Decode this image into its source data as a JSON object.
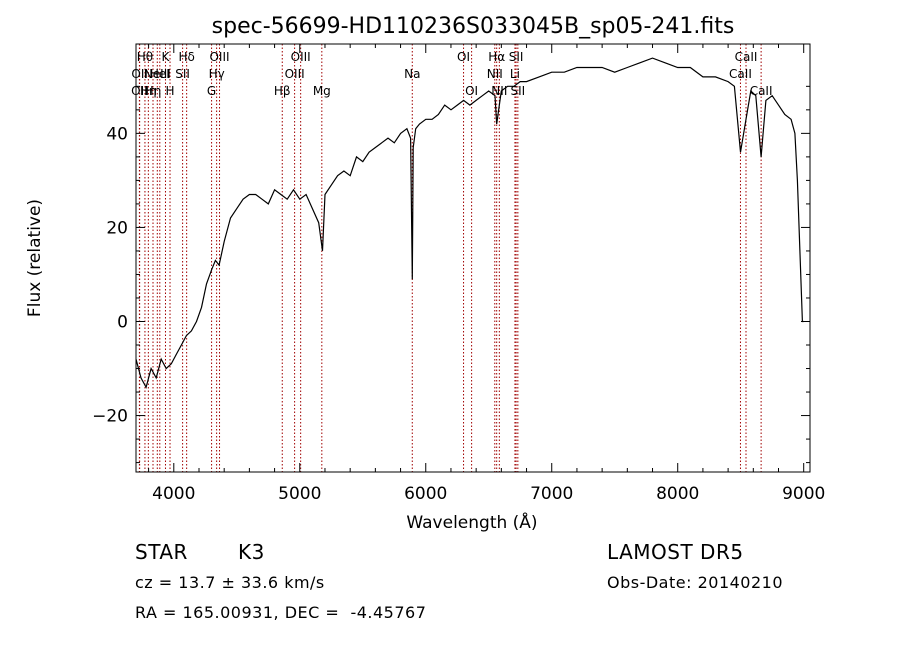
{
  "chart_data": {
    "type": "line",
    "title": "spec-56699-HD110236S033045B_sp05-241.fits",
    "xlabel": "Wavelength (Å)",
    "ylabel": "Flux (relative)",
    "xlim": [
      3700,
      9050
    ],
    "ylim": [
      -32,
      59
    ],
    "x_ticks": [
      4000,
      5000,
      6000,
      7000,
      8000,
      9000
    ],
    "y_ticks": [
      -20,
      0,
      20,
      40
    ],
    "grid": false,
    "line_color": "#000000",
    "marker_color": "#a00000",
    "series": [
      {
        "x": [
          3700,
          3740,
          3780,
          3820,
          3860,
          3900,
          3940,
          3980,
          4020,
          4060,
          4100,
          4140,
          4180,
          4220,
          4260,
          4300,
          4330,
          4360,
          4400,
          4450,
          4500,
          4550,
          4600,
          4650,
          4700,
          4750,
          4800,
          4850,
          4900,
          4950,
          5000,
          5050,
          5100,
          5150,
          5180,
          5200,
          5250,
          5300,
          5350,
          5400,
          5450,
          5500,
          5550,
          5600,
          5650,
          5700,
          5750,
          5800,
          5850,
          5880,
          5893,
          5900,
          5920,
          5950,
          6000,
          6050,
          6100,
          6150,
          6200,
          6250,
          6300,
          6350,
          6400,
          6450,
          6500,
          6550,
          6563,
          6600,
          6650,
          6700,
          6750,
          6800,
          6900,
          7000,
          7100,
          7200,
          7300,
          7400,
          7500,
          7600,
          7700,
          7800,
          7900,
          8000,
          8100,
          8200,
          8300,
          8400,
          8450,
          8498,
          8542,
          8580,
          8620,
          8662,
          8700,
          8750,
          8800,
          8850,
          8900,
          8930,
          8950,
          8970,
          8990,
          9000
        ],
        "y": [
          -8,
          -12,
          -14,
          -10,
          -12,
          -8,
          -10,
          -9,
          -7,
          -5,
          -3,
          -2,
          0,
          3,
          8,
          11,
          13,
          12,
          17,
          22,
          24,
          26,
          27,
          27,
          26,
          25,
          28,
          27,
          26,
          28,
          26,
          27,
          24,
          21,
          15,
          27,
          29,
          31,
          32,
          31,
          35,
          34,
          36,
          37,
          38,
          39,
          38,
          40,
          41,
          39,
          9,
          37,
          41,
          42,
          43,
          43,
          44,
          46,
          45,
          46,
          47,
          46,
          47,
          48,
          49,
          48,
          42,
          49,
          50,
          50,
          51,
          51,
          52,
          53,
          53,
          54,
          54,
          54,
          53,
          54,
          55,
          56,
          55,
          54,
          54,
          52,
          52,
          51,
          50,
          36,
          43,
          49,
          48,
          35,
          47,
          48,
          46,
          44,
          43,
          40,
          30,
          15,
          0,
          0
        ]
      }
    ],
    "lines": [
      {
        "w": 3727,
        "label": "OII",
        "row": 2
      },
      {
        "w": 3729,
        "label": "OII",
        "row": 1
      },
      {
        "w": 3771,
        "label": "Hθ",
        "row": 0
      },
      {
        "w": 3798,
        "label": "Hη",
        "row": 2
      },
      {
        "w": 3835,
        "label": "Hη",
        "row": 2
      },
      {
        "w": 3869,
        "label": "NeIII",
        "row": 1
      },
      {
        "w": 3889,
        "label": "HeI",
        "row": 1
      },
      {
        "w": 3934,
        "label": "K",
        "row": 0
      },
      {
        "w": 3970,
        "label": "H",
        "row": 2
      },
      {
        "w": 4070,
        "label": "SII",
        "row": 1
      },
      {
        "w": 4102,
        "label": "Hδ",
        "row": 0
      },
      {
        "w": 4300,
        "label": "G",
        "row": 2
      },
      {
        "w": 4340,
        "label": "Hγ",
        "row": 1
      },
      {
        "w": 4363,
        "label": "OIII",
        "row": 0
      },
      {
        "w": 4861,
        "label": "Hβ",
        "row": 2
      },
      {
        "w": 4959,
        "label": "OIII",
        "row": 1
      },
      {
        "w": 5007,
        "label": "OIII",
        "row": 0
      },
      {
        "w": 5175,
        "label": "Mg",
        "row": 2
      },
      {
        "w": 5893,
        "label": "Na",
        "row": 1
      },
      {
        "w": 6300,
        "label": "OI",
        "row": 0
      },
      {
        "w": 6364,
        "label": "OI",
        "row": 2
      },
      {
        "w": 6548,
        "label": "NII",
        "row": 1
      },
      {
        "w": 6563,
        "label": "Hα",
        "row": 0
      },
      {
        "w": 6584,
        "label": "NII",
        "row": 2
      },
      {
        "w": 6708,
        "label": "Li",
        "row": 1
      },
      {
        "w": 6717,
        "label": "SII",
        "row": 0
      },
      {
        "w": 6731,
        "label": "SII",
        "row": 2
      },
      {
        "w": 8498,
        "label": "CaII",
        "row": 1
      },
      {
        "w": 8542,
        "label": "CaII",
        "row": 0
      },
      {
        "w": 8662,
        "label": "CaII",
        "row": 2
      }
    ]
  },
  "info": {
    "class_type": "STAR",
    "subclass": "K3",
    "cz": "cz = 13.7 ± 33.6 km/s",
    "coords": "RA = 165.00931, DEC =  -4.45767",
    "survey": "LAMOST DR5",
    "obs_date": "Obs-Date: 20140210"
  }
}
